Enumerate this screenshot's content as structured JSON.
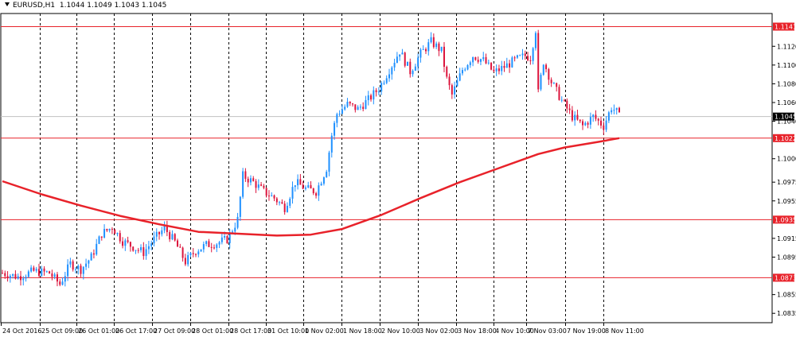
{
  "header": {
    "symbol": "EURUSD,H1",
    "quote": "1.1044 1.1049 1.1043 1.1045",
    "menu_icon": "triangle-down-icon"
  },
  "colors": {
    "bull": "#1e90ff",
    "bear": "#dc143c",
    "level": "#e8222a",
    "ma": "#e8222a",
    "grid": "#000000",
    "current_price": "#c0c0c0"
  },
  "chart_data": {
    "type": "candlestick",
    "title": "EURUSD,H1",
    "timeframe": "H1",
    "ylim": [
      1.0825,
      1.1155
    ],
    "grid": true,
    "y_ticks": [
      "1.1120",
      "1.1100",
      "1.1080",
      "1.1060",
      "1.1040",
      "1.1000",
      "1.0975",
      "1.0955",
      "1.0915",
      "1.0895",
      "1.0855",
      "1.0835"
    ],
    "y_tick_values": [
      1.112,
      1.11,
      1.108,
      1.106,
      1.104,
      1.1,
      1.0975,
      1.0955,
      1.0915,
      1.0895,
      1.0855,
      1.0835
    ],
    "x_labels": [
      "24 Oct 2016",
      "25 Oct 09:00",
      "26 Oct 01:00",
      "26 Oct 17:00",
      "27 Oct 09:00",
      "28 Oct 01:00",
      "28 Oct 17:00",
      "31 Oct 10:00",
      "1 Nov 02:00",
      "1 Nov 18:00",
      "2 Nov 10:00",
      "3 Nov 02:00",
      "3 Nov 18:00",
      "4 Nov 10:00",
      "7 Nov 03:00",
      "7 Nov 19:00",
      "8 Nov 11:00"
    ],
    "levels": [
      {
        "label": "1.1141",
        "value": 1.1141
      },
      {
        "label": "1.1022",
        "value": 1.1022
      },
      {
        "label": "1.0935",
        "value": 1.0935
      },
      {
        "label": "1.0873",
        "value": 1.0873
      }
    ],
    "current_price": {
      "label": "1.1045",
      "value": 1.1045
    },
    "moving_average": {
      "color": "#e8222a",
      "points": [
        [
          0,
          1.0976
        ],
        [
          15,
          1.0962
        ],
        [
          30,
          1.095
        ],
        [
          45,
          1.0939
        ],
        [
          60,
          1.093
        ],
        [
          75,
          1.0922
        ],
        [
          90,
          1.092
        ],
        [
          105,
          1.0918
        ],
        [
          118,
          1.0919
        ],
        [
          130,
          1.0925
        ],
        [
          145,
          1.094
        ],
        [
          160,
          1.0958
        ],
        [
          175,
          1.0975
        ],
        [
          190,
          1.099
        ],
        [
          205,
          1.1005
        ],
        [
          215,
          1.1012
        ],
        [
          228,
          1.1018
        ],
        [
          236,
          1.1022
        ]
      ]
    },
    "candles_anchors": [
      [
        0,
        1.0878
      ],
      [
        6,
        1.0874
      ],
      [
        12,
        1.088
      ],
      [
        18,
        1.0878
      ],
      [
        22,
        1.0866
      ],
      [
        26,
        1.0888
      ],
      [
        30,
        1.0882
      ],
      [
        34,
        1.0895
      ],
      [
        38,
        1.092
      ],
      [
        42,
        1.0927
      ],
      [
        46,
        1.0912
      ],
      [
        50,
        1.0906
      ],
      [
        54,
        1.09
      ],
      [
        58,
        1.0914
      ],
      [
        62,
        1.0926
      ],
      [
        66,
        1.0911
      ],
      [
        70,
        1.089
      ],
      [
        74,
        1.0902
      ],
      [
        78,
        1.0908
      ],
      [
        82,
        1.091
      ],
      [
        86,
        1.0914
      ],
      [
        90,
        1.0935
      ],
      [
        92,
        1.0982
      ],
      [
        96,
        1.0975
      ],
      [
        100,
        1.0965
      ],
      [
        104,
        1.0958
      ],
      [
        108,
        1.0948
      ],
      [
        112,
        1.0975
      ],
      [
        116,
        1.0968
      ],
      [
        120,
        1.0965
      ],
      [
        124,
        1.099
      ],
      [
        126,
        1.1025
      ],
      [
        128,
        1.1048
      ],
      [
        132,
        1.1058
      ],
      [
        136,
        1.1053
      ],
      [
        140,
        1.1063
      ],
      [
        144,
        1.1075
      ],
      [
        148,
        1.1095
      ],
      [
        152,
        1.1115
      ],
      [
        156,
        1.1093
      ],
      [
        160,
        1.1112
      ],
      [
        164,
        1.1125
      ],
      [
        168,
        1.1115
      ],
      [
        170,
        1.1085
      ],
      [
        172,
        1.1068
      ],
      [
        176,
        1.1095
      ],
      [
        180,
        1.111
      ],
      [
        184,
        1.1105
      ],
      [
        188,
        1.1092
      ],
      [
        192,
        1.1098
      ],
      [
        196,
        1.1105
      ],
      [
        200,
        1.111
      ],
      [
        202,
        1.1108
      ],
      [
        204,
        1.1138
      ],
      [
        205,
        1.107
      ],
      [
        207,
        1.1104
      ],
      [
        210,
        1.1082
      ],
      [
        214,
        1.1062
      ],
      [
        218,
        1.1045
      ],
      [
        222,
        1.1035
      ],
      [
        226,
        1.1045
      ],
      [
        230,
        1.1035
      ],
      [
        233,
        1.1055
      ],
      [
        235,
        1.105
      ],
      [
        236,
        1.1045
      ]
    ],
    "candle_count": 237
  }
}
